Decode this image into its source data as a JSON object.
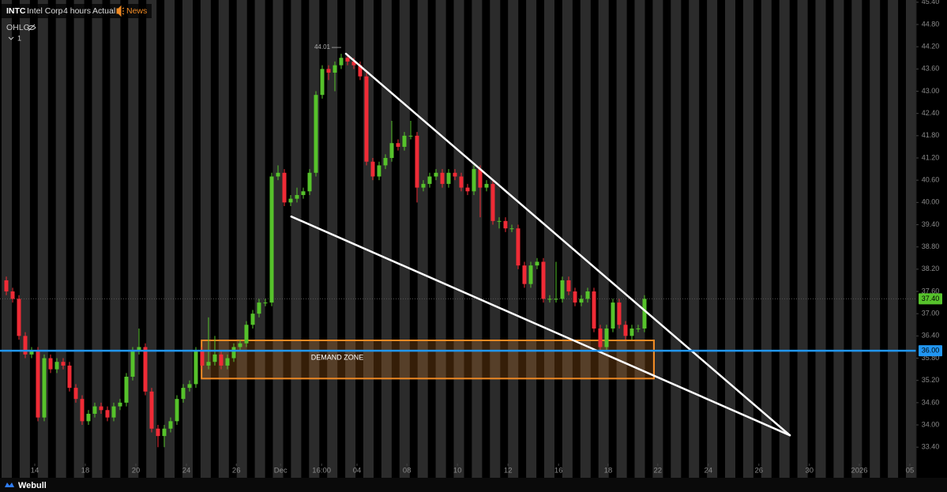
{
  "header": {
    "symbol": "INTC",
    "name": "Intel Corp",
    "interval": "4 hours",
    "mode": "Actual",
    "news": "News",
    "indicator": "OHLC",
    "pane": "1",
    "brand": "Webull"
  },
  "chart_data": {
    "type": "candlestick",
    "x": [
      0,
      1,
      2,
      3,
      4,
      5,
      6,
      7,
      8,
      9,
      10,
      11,
      12,
      13,
      14,
      15,
      16,
      17,
      18,
      19,
      20,
      21,
      22,
      23,
      24,
      25,
      26,
      27,
      28,
      29,
      30,
      31,
      32,
      33,
      34,
      35,
      36,
      37,
      38,
      39,
      40,
      41,
      42,
      43,
      44,
      45,
      46,
      47,
      48,
      49,
      50,
      51,
      52,
      53,
      54,
      55,
      56,
      57,
      58,
      59,
      60,
      61,
      62,
      63,
      64,
      65,
      66,
      67,
      68,
      69,
      70,
      71,
      72,
      73,
      74,
      75,
      76,
      77,
      78,
      79,
      80,
      81,
      82,
      83,
      84,
      85,
      86,
      87,
      88,
      89,
      90,
      91,
      92,
      93,
      94,
      95,
      96,
      97,
      98,
      99,
      100,
      101
    ],
    "open": [
      37.9,
      37.6,
      37.4,
      36.4,
      35.9,
      36.0,
      34.2,
      35.8,
      35.5,
      35.7,
      35.6,
      35.0,
      34.7,
      34.1,
      34.3,
      34.5,
      34.4,
      34.2,
      34.5,
      34.6,
      35.3,
      36.0,
      36.1,
      34.9,
      33.9,
      33.7,
      33.9,
      34.1,
      34.7,
      35.0,
      35.1,
      36.0,
      35.6,
      35.7,
      35.9,
      35.6,
      35.8,
      36.1,
      36.2,
      36.7,
      37.0,
      37.3,
      37.3,
      40.7,
      40.8,
      40.0,
      40.1,
      40.2,
      40.3,
      40.8,
      42.9,
      43.6,
      43.5,
      43.7,
      43.9,
      43.8,
      43.7,
      43.4,
      41.1,
      40.7,
      41.0,
      41.2,
      41.6,
      41.5,
      41.8,
      41.8,
      40.4,
      40.5,
      40.7,
      40.8,
      40.5,
      40.8,
      40.7,
      40.4,
      40.3,
      40.9,
      40.4,
      40.5,
      39.5,
      39.5,
      39.3,
      39.3,
      38.3,
      37.8,
      38.3,
      38.4,
      37.4,
      37.4,
      37.4,
      37.9,
      37.6,
      37.3,
      37.4,
      37.6,
      36.6,
      36.1,
      36.6,
      37.3,
      36.7,
      36.4,
      36.6,
      36.6
    ],
    "high": [
      38.0,
      37.7,
      37.5,
      36.5,
      36.1,
      36.1,
      35.9,
      35.9,
      35.8,
      35.8,
      35.7,
      35.1,
      34.8,
      34.4,
      34.6,
      34.6,
      34.5,
      34.6,
      34.7,
      35.4,
      36.1,
      36.6,
      36.2,
      35.0,
      34.0,
      34.0,
      34.2,
      34.8,
      35.1,
      35.2,
      36.1,
      36.1,
      36.9,
      36.4,
      36.0,
      35.9,
      36.2,
      36.3,
      36.8,
      37.1,
      37.4,
      37.4,
      40.8,
      41.0,
      40.9,
      40.2,
      40.4,
      40.4,
      40.9,
      43.0,
      43.7,
      43.7,
      43.8,
      44.01,
      44.0,
      43.9,
      43.8,
      43.5,
      41.2,
      41.1,
      41.3,
      42.2,
      41.7,
      41.9,
      42.2,
      41.9,
      40.6,
      40.8,
      40.9,
      40.9,
      40.9,
      40.9,
      40.8,
      40.5,
      41.0,
      41.0,
      40.6,
      40.6,
      39.6,
      39.6,
      39.4,
      39.4,
      38.4,
      38.4,
      38.5,
      38.5,
      37.5,
      38.4,
      38.0,
      38.0,
      37.7,
      37.5,
      37.7,
      37.7,
      36.7,
      36.7,
      37.4,
      37.4,
      36.8,
      36.7,
      36.7,
      37.5
    ],
    "low": [
      37.5,
      37.3,
      36.3,
      35.8,
      35.8,
      34.1,
      34.1,
      35.4,
      35.4,
      35.5,
      34.9,
      34.6,
      34.0,
      34.0,
      34.2,
      34.3,
      34.1,
      34.1,
      34.4,
      34.5,
      35.2,
      35.9,
      34.8,
      33.8,
      33.4,
      33.4,
      33.8,
      34.0,
      34.6,
      34.9,
      35.0,
      35.5,
      35.5,
      35.6,
      35.5,
      35.5,
      35.7,
      36.0,
      36.1,
      36.6,
      36.9,
      37.2,
      37.2,
      40.6,
      39.9,
      39.9,
      40.0,
      40.1,
      40.2,
      40.7,
      42.8,
      43.3,
      43.0,
      43.6,
      43.7,
      43.6,
      43.3,
      41.0,
      40.6,
      40.6,
      40.9,
      41.1,
      41.4,
      41.4,
      41.7,
      40.0,
      40.3,
      40.4,
      40.6,
      40.4,
      40.4,
      40.6,
      40.3,
      40.2,
      40.2,
      39.6,
      40.3,
      39.4,
      39.3,
      39.2,
      39.2,
      38.2,
      37.7,
      37.7,
      38.2,
      37.3,
      37.3,
      37.3,
      37.3,
      37.5,
      37.2,
      37.2,
      37.3,
      36.5,
      36.0,
      36.0,
      36.5,
      36.6,
      36.3,
      36.3,
      36.5,
      36.5
    ],
    "close": [
      37.6,
      37.4,
      36.4,
      35.9,
      36.0,
      34.2,
      35.8,
      35.5,
      35.7,
      35.6,
      35.0,
      34.7,
      34.1,
      34.3,
      34.5,
      34.4,
      34.2,
      34.5,
      34.6,
      35.3,
      36.0,
      36.1,
      34.9,
      33.9,
      33.7,
      33.9,
      34.1,
      34.7,
      35.0,
      35.1,
      36.0,
      35.6,
      35.7,
      35.9,
      35.6,
      35.8,
      36.1,
      36.2,
      36.7,
      37.0,
      37.3,
      37.3,
      40.7,
      40.8,
      40.0,
      40.1,
      40.2,
      40.3,
      40.8,
      42.9,
      43.6,
      43.5,
      43.7,
      43.9,
      43.8,
      43.7,
      43.4,
      41.1,
      40.7,
      41.0,
      41.2,
      41.6,
      41.5,
      41.8,
      41.8,
      40.4,
      40.5,
      40.7,
      40.8,
      40.5,
      40.8,
      40.7,
      40.4,
      40.3,
      40.9,
      40.4,
      40.5,
      39.5,
      39.5,
      39.3,
      39.3,
      38.3,
      37.8,
      38.3,
      38.4,
      37.4,
      37.4,
      37.4,
      37.9,
      37.6,
      37.3,
      37.4,
      37.6,
      36.6,
      36.1,
      36.6,
      37.3,
      36.7,
      36.4,
      36.6,
      36.6,
      37.4
    ],
    "up_color": "#56c22b",
    "down_color": "#ef2b36",
    "high_label_index": 53,
    "ylim": [
      33.0,
      45.46
    ],
    "yticks": [
      {
        "value": 45.4,
        "label": "45.40"
      },
      {
        "value": 44.8,
        "label": "44.80"
      },
      {
        "value": 44.2,
        "label": "44.20"
      },
      {
        "value": 43.6,
        "label": "43.60"
      },
      {
        "value": 43.0,
        "label": "43.00"
      },
      {
        "value": 42.4,
        "label": "42.40"
      },
      {
        "value": 41.8,
        "label": "41.80"
      },
      {
        "value": 41.2,
        "label": "41.20"
      },
      {
        "value": 40.6,
        "label": "40.60"
      },
      {
        "value": 40.0,
        "label": "40.00"
      },
      {
        "value": 39.4,
        "label": "39.40"
      },
      {
        "value": 38.8,
        "label": "38.80"
      },
      {
        "value": 38.2,
        "label": "38.20"
      },
      {
        "value": 37.6,
        "label": "37.60"
      },
      {
        "value": 37.0,
        "label": "37.00"
      },
      {
        "value": 36.4,
        "label": "36.40"
      },
      {
        "value": 35.8,
        "label": "35.80"
      },
      {
        "value": 35.2,
        "label": "35.20"
      },
      {
        "value": 34.6,
        "label": "34.60"
      },
      {
        "value": 34.0,
        "label": "34.00"
      },
      {
        "value": 33.4,
        "label": "33.40"
      }
    ],
    "xlim": [
      -1,
      144
    ],
    "xticks": [
      {
        "value": 4.5,
        "label": "14"
      },
      {
        "value": 12.5,
        "label": "18"
      },
      {
        "value": 20.5,
        "label": "20"
      },
      {
        "value": 28.5,
        "label": "24"
      },
      {
        "value": 36.4,
        "label": "26"
      },
      {
        "value": 43.4,
        "label": "Dec"
      },
      {
        "value": 49.9,
        "label": "16:00"
      },
      {
        "value": 55.5,
        "label": "04"
      },
      {
        "value": 63.4,
        "label": "08"
      },
      {
        "value": 71.4,
        "label": "10"
      },
      {
        "value": 79.4,
        "label": "12"
      },
      {
        "value": 87.4,
        "label": "16"
      },
      {
        "value": 95.25,
        "label": "18"
      },
      {
        "value": 103.1,
        "label": "22"
      },
      {
        "value": 111.1,
        "label": "24"
      },
      {
        "value": 119.1,
        "label": "26"
      },
      {
        "value": 127.1,
        "label": "30"
      },
      {
        "value": 135,
        "label": "2026"
      },
      {
        "value": 143,
        "label": "05"
      }
    ],
    "hlines": [
      {
        "value": 36.0,
        "label": "36.00",
        "color": "#2196f3"
      }
    ],
    "price_marker": {
      "value": 37.4,
      "label": "37.40",
      "color": "#56c22b"
    },
    "zone": {
      "label": "DEMAND ZONE",
      "x": [
        30.9,
        102.5
      ],
      "y": [
        35.25,
        36.28
      ],
      "color": "#f08a24"
    },
    "trendlines": [
      {
        "x": [
          53.75,
          124
        ],
        "y": [
          44.01,
          33.72
        ],
        "color": "#ffffff"
      },
      {
        "x": [
          45.1,
          124
        ],
        "y": [
          39.62,
          33.72
        ],
        "color": "#ffffff"
      }
    ]
  }
}
